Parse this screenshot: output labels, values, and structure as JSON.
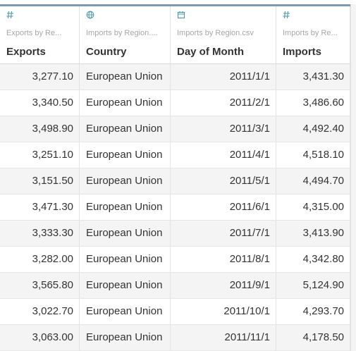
{
  "columns": [
    {
      "icon": "hash-icon",
      "source": "Exports by Re...",
      "name": "Exports"
    },
    {
      "icon": "globe-icon",
      "source": "Imports by Region....",
      "name": "Country"
    },
    {
      "icon": "calendar-icon",
      "source": "Imports by Region.csv",
      "name": "Day of Month"
    },
    {
      "icon": "hash-icon",
      "source": "Imports by Re...",
      "name": "Imports"
    }
  ],
  "rows": [
    {
      "exports": "3,277.10",
      "country": "European Union",
      "day": "2011/1/1",
      "imports": "3,431.30"
    },
    {
      "exports": "3,340.50",
      "country": "European Union",
      "day": "2011/2/1",
      "imports": "3,486.60"
    },
    {
      "exports": "3,498.90",
      "country": "European Union",
      "day": "2011/3/1",
      "imports": "4,492.40"
    },
    {
      "exports": "3,251.10",
      "country": "European Union",
      "day": "2011/4/1",
      "imports": "4,518.10"
    },
    {
      "exports": "3,151.50",
      "country": "European Union",
      "day": "2011/5/1",
      "imports": "4,494.70"
    },
    {
      "exports": "3,471.30",
      "country": "European Union",
      "day": "2011/6/1",
      "imports": "4,315.00"
    },
    {
      "exports": "3,333.30",
      "country": "European Union",
      "day": "2011/7/1",
      "imports": "3,413.90"
    },
    {
      "exports": "3,282.00",
      "country": "European Union",
      "day": "2011/8/1",
      "imports": "4,342.80"
    },
    {
      "exports": "3,565.80",
      "country": "European Union",
      "day": "2011/9/1",
      "imports": "5,124.90"
    },
    {
      "exports": "3,022.70",
      "country": "European Union",
      "day": "2011/10/1",
      "imports": "4,293.70"
    },
    {
      "exports": "3,063.00",
      "country": "European Union",
      "day": "2011/11/1",
      "imports": "4,178.50"
    }
  ],
  "colors": {
    "accent": "#4a98a6",
    "header_bar": "#7a9cad",
    "stripe": "#f4f4f4"
  }
}
